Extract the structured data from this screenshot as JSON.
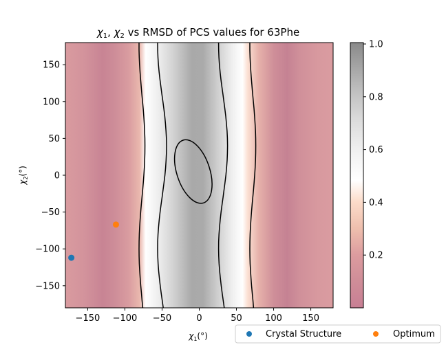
{
  "chart_data": {
    "type": "heatmap",
    "title_parts": {
      "chi": "χ",
      "sub1": "1",
      "comma": ", ",
      "sub2": "2",
      "rest": " vs RMSD of PCS values for 63Phe"
    },
    "xlabel_parts": {
      "chi": "χ",
      "sub": "1",
      "unit": "(°)"
    },
    "ylabel_parts": {
      "chi": "χ",
      "sub": "2",
      "unit": "(°)"
    },
    "xlim": [
      -180,
      180
    ],
    "ylim": [
      -180,
      180
    ],
    "xticks": [
      -150,
      -100,
      -50,
      0,
      50,
      100,
      150
    ],
    "xtick_labels": [
      "−150",
      "−100",
      "−50",
      "0",
      "50",
      "100",
      "150"
    ],
    "yticks": [
      150,
      100,
      50,
      0,
      -50,
      -100,
      -150
    ],
    "ytick_labels": [
      "150",
      "100",
      "50",
      "0",
      "−50",
      "−100",
      "−150"
    ],
    "colorbar": {
      "range": [
        0,
        1
      ],
      "ticks": [
        1.0,
        0.8,
        0.6,
        0.4,
        0.2
      ],
      "tick_labels": [
        "1.0",
        "0.8",
        "0.6",
        "0.4",
        "0.2"
      ],
      "colormap": "RdGy (reversed, alpha 0.5)"
    },
    "contour_levels": [
      0.5,
      0.8
    ],
    "points": [
      {
        "name": "Crystal Structure",
        "x": -172,
        "y": -112,
        "color": "#1f77b4"
      },
      {
        "name": "Optimum",
        "x": -112,
        "y": -67,
        "color": "#ff7f0e"
      }
    ],
    "legend": {
      "placement": "bottom-right, below axes",
      "entries": [
        "Crystal Structure",
        "Optimum"
      ]
    }
  }
}
